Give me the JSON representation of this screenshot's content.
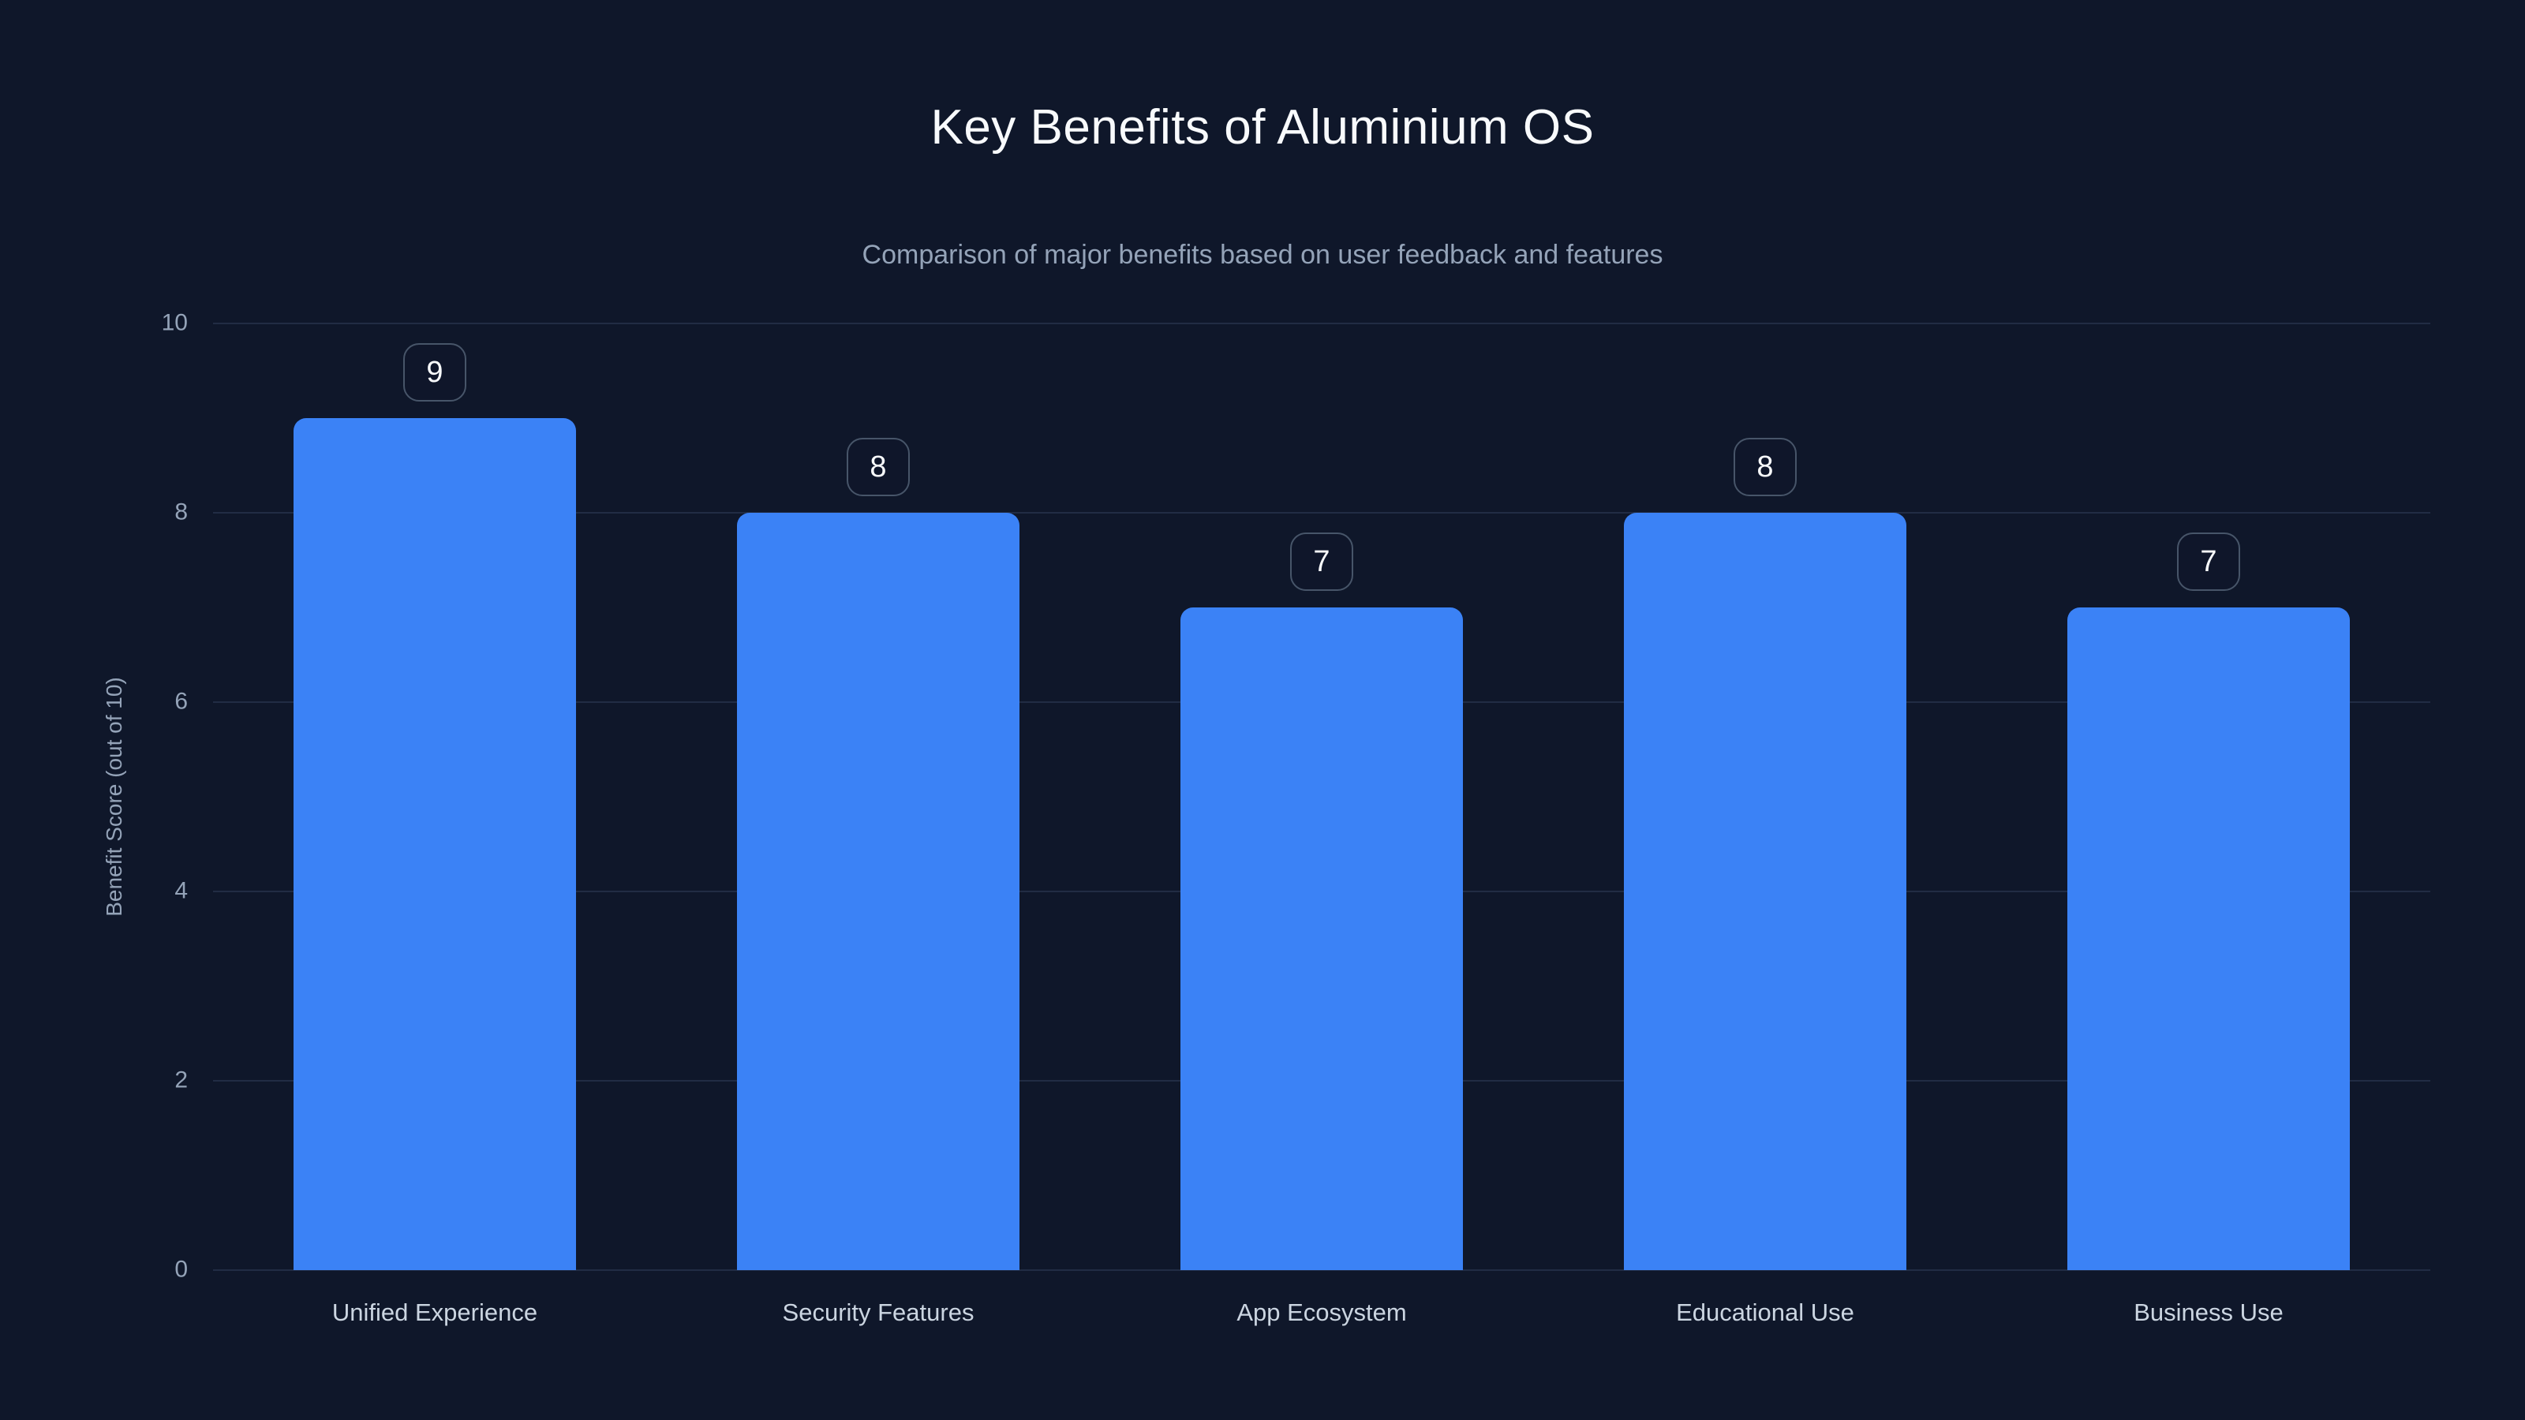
{
  "page": {
    "background_color": "#0f172a"
  },
  "chart_data": {
    "type": "bar",
    "title": "Key Benefits of Aluminium OS",
    "subtitle": "Comparison of major benefits based on user feedback and features",
    "categories": [
      "Unified Experience",
      "Security Features",
      "App Ecosystem",
      "Educational Use",
      "Business Use"
    ],
    "values": [
      9,
      8,
      7,
      8,
      7
    ],
    "value_labels": [
      "9",
      "8",
      "7",
      "8",
      "7"
    ],
    "xlabel": "",
    "ylabel": "Benefit Score (out of 10)",
    "ylim": [
      0,
      10
    ],
    "yticks": [
      0,
      2,
      4,
      6,
      8,
      10
    ],
    "grid": "horizontal",
    "legend": "none",
    "bar_color": "#3b82f6",
    "title_color": "#f8fafc",
    "subtitle_color": "#94a3b8",
    "tick_color": "#94a3b8",
    "x_label_color": "#cbd5e1",
    "grid_color": "#212c44",
    "badge_border_color": "#475569",
    "badge_text_color": "#f8fafc"
  }
}
